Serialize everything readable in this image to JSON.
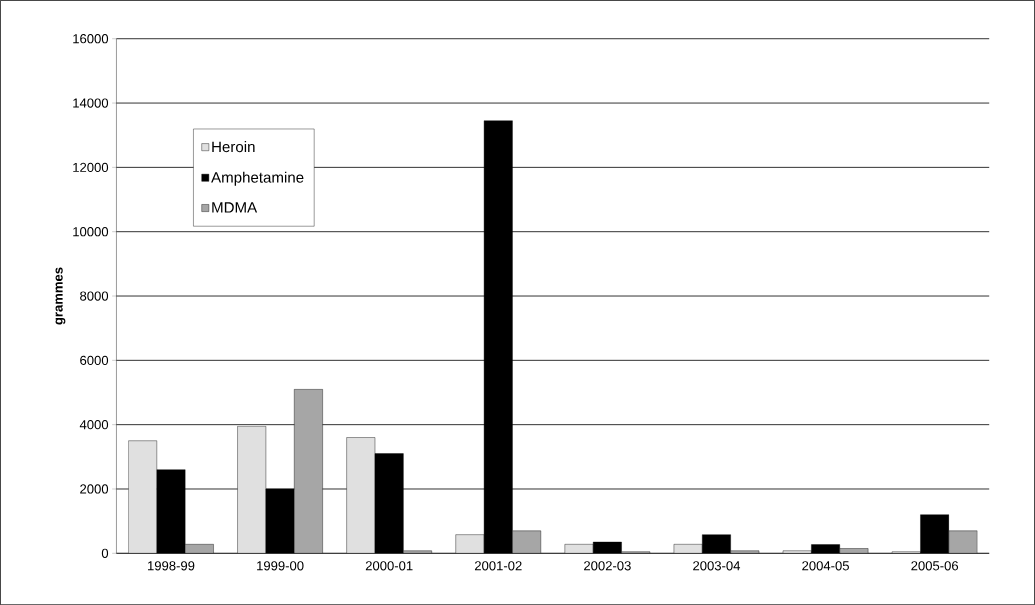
{
  "chart_data": {
    "type": "bar",
    "ylabel": "grammes",
    "categories": [
      "1998-99",
      "1999-00",
      "2000-01",
      "2001-02",
      "2002-03",
      "2003-04",
      "2004-05",
      "2005-06"
    ],
    "series": [
      {
        "name": "Heroin",
        "color": "#e0e0e0",
        "values": [
          3500,
          3950,
          3600,
          580,
          280,
          280,
          80,
          50
        ]
      },
      {
        "name": "Amphetamine",
        "color": "#000000",
        "values": [
          2600,
          2000,
          3100,
          13450,
          350,
          580,
          270,
          1200
        ]
      },
      {
        "name": "MDMA",
        "color": "#a6a6a6",
        "values": [
          280,
          5100,
          80,
          700,
          50,
          80,
          150,
          700
        ]
      }
    ],
    "ylim": [
      0,
      16000
    ],
    "yticks": [
      0,
      2000,
      4000,
      6000,
      8000,
      10000,
      12000,
      14000,
      16000
    ],
    "grid": "y",
    "legend": "top left"
  }
}
